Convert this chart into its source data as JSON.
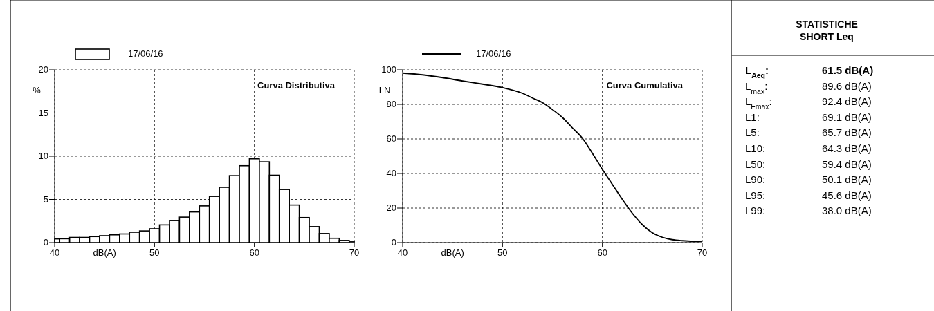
{
  "chart_data": [
    {
      "type": "histogram",
      "title": "Curva Distributiva",
      "xlabel": "dB(A)",
      "ylabel": "%",
      "bins": [
        40,
        40.5,
        41.5,
        42.5,
        43.5,
        44.5,
        45.5,
        46.5,
        47.5,
        48.5,
        49.5,
        50.5,
        51.5,
        52.5,
        53.5,
        54.5,
        55.5,
        56.5,
        57.5,
        58.5,
        59.5,
        60.5,
        61.5,
        62.5,
        63.5,
        64.5,
        65.5,
        66.5,
        67.5,
        68.5,
        69.5,
        70
      ],
      "series": [
        {
          "name": "17/06/16",
          "color": "#ffffff",
          "values": [
            0.43,
            0.45,
            0.6,
            0.6,
            0.7,
            0.8,
            0.9,
            1.0,
            1.2,
            1.35,
            1.6,
            2.05,
            2.55,
            2.95,
            3.55,
            4.25,
            5.35,
            6.4,
            7.75,
            8.9,
            9.7,
            9.35,
            7.8,
            6.15,
            4.35,
            2.9,
            1.85,
            1.05,
            0.5,
            0.25,
            0.15
          ]
        }
      ],
      "xlim": [
        40,
        70
      ],
      "xticks": [
        40,
        50,
        60,
        70
      ],
      "ylim": [
        0,
        20
      ],
      "yticks": [
        0,
        5,
        10,
        15,
        20
      ],
      "grid": true,
      "legend": "top left"
    },
    {
      "type": "line",
      "title": "Curva Cumulativa",
      "xlabel": "dB(A)",
      "ylabel": "LN",
      "x": [
        40,
        42,
        44,
        46,
        48,
        50,
        52,
        53,
        54,
        55,
        56,
        57,
        58,
        59,
        60,
        61,
        62,
        63,
        64,
        65,
        66,
        67,
        68,
        69,
        70
      ],
      "series": [
        {
          "name": "17/06/16",
          "color": "#000000",
          "values": [
            98.1,
            97.1,
            95.5,
            93.5,
            91.7,
            89.7,
            86.4,
            83.7,
            81,
            77,
            72.4,
            66.4,
            60.4,
            51.7,
            42.4,
            33.7,
            25,
            17,
            10.4,
            5.7,
            3.1,
            1.7,
            1.1,
            0.8,
            0.8
          ]
        }
      ],
      "xlim": [
        40,
        70
      ],
      "xticks": [
        40,
        50,
        60,
        70
      ],
      "ylim": [
        0,
        100
      ],
      "yticks": [
        0,
        20,
        40,
        60,
        80,
        100
      ],
      "grid": true,
      "legend": "top left"
    },
    {
      "type": "other",
      "title": "STATISTICHE",
      "subtitle": "SHORT Leq",
      "annotations": [
        "L$_{Aeq}$:",
        "61.5 dB(A)",
        "L$_{max}$:",
        "89.6 dB(A)",
        "L$_{Fmax}$:",
        "92.4 dB(A)",
        "L1:",
        "69.1 dB(A)",
        "L5:",
        "65.7 dB(A)",
        "L10:",
        "64.3 dB(A)",
        "L50:",
        "59.4 dB(A)",
        "L90:",
        "50.1 dB(A)",
        "L95:",
        "45.6 dB(A)",
        "L99:",
        "38.0 dB(A)"
      ]
    }
  ]
}
